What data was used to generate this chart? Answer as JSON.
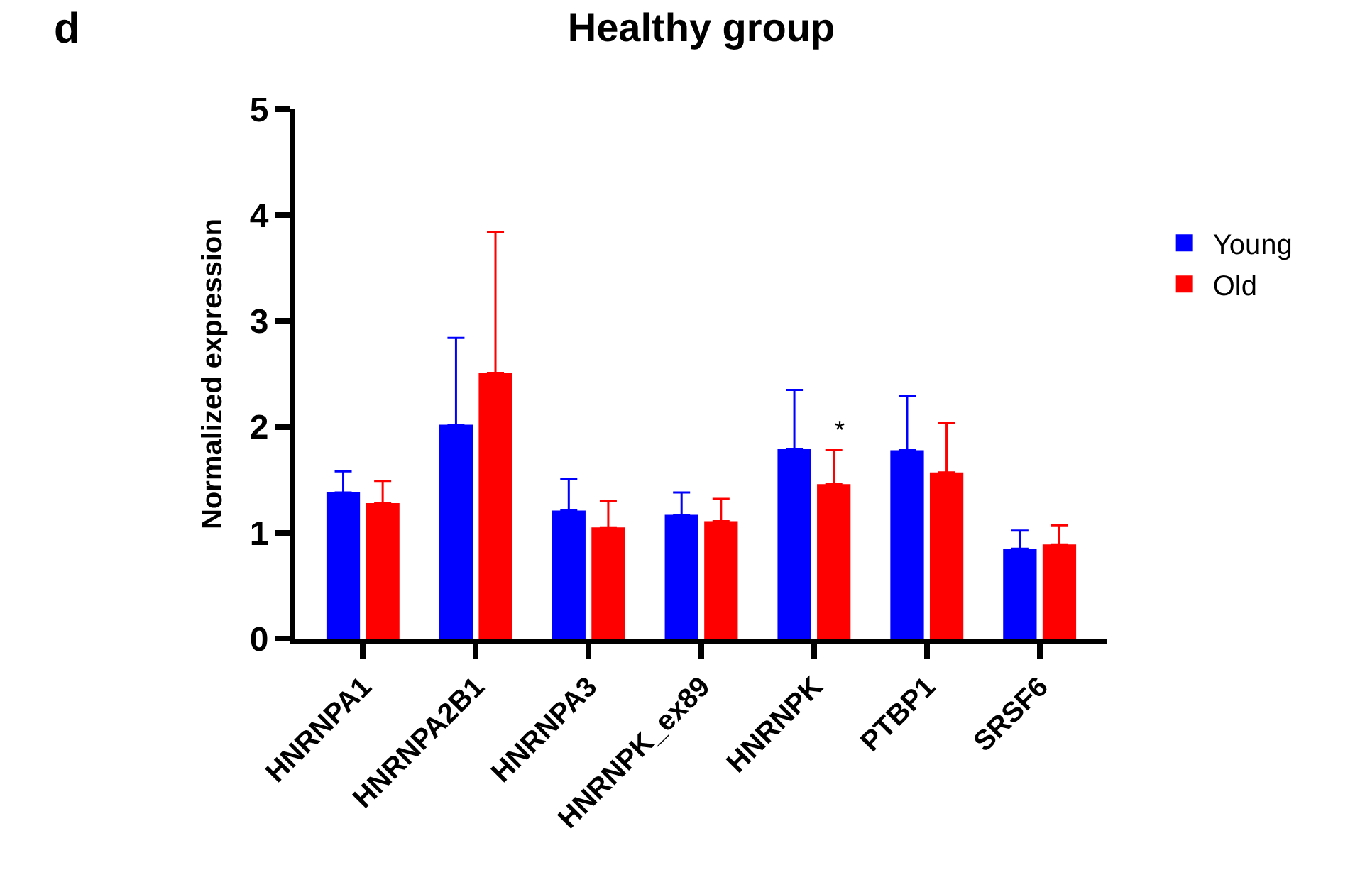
{
  "chart_data": {
    "type": "bar",
    "title": "Healthy group",
    "ylabel": "Normalized expression",
    "categories": [
      "HNRNPA1",
      "HNRNPA2B1",
      "HNRNPA3",
      "HNRNPK_ex89",
      "HNRNPK",
      "PTBP1",
      "SRSF6"
    ],
    "series": [
      {
        "name": "Young",
        "color": "#0000ff",
        "values": [
          1.38,
          2.02,
          1.21,
          1.17,
          1.79,
          1.78,
          0.85
        ],
        "errors": [
          [
            1.38,
            1.58
          ],
          [
            2.02,
            2.84
          ],
          [
            1.21,
            1.51
          ],
          [
            1.17,
            1.38
          ],
          [
            1.79,
            2.35
          ],
          [
            1.78,
            2.29
          ],
          [
            0.85,
            1.02
          ]
        ]
      },
      {
        "name": "Old",
        "color": "#ff0000",
        "values": [
          1.28,
          2.51,
          1.05,
          1.11,
          1.46,
          1.57,
          0.89
        ],
        "errors": [
          [
            1.28,
            1.49
          ],
          [
            2.51,
            3.84
          ],
          [
            1.05,
            1.3
          ],
          [
            1.11,
            1.32
          ],
          [
            1.46,
            1.78
          ],
          [
            1.57,
            2.04
          ],
          [
            0.89,
            1.07
          ]
        ]
      }
    ],
    "ylim": [
      0,
      5
    ],
    "yticks": [
      0,
      1,
      2,
      3,
      4,
      5
    ],
    "legend": "top right",
    "annotations": [
      "d",
      {
        "text": "*",
        "x": "HNRNPK",
        "y": 1.78
      }
    ]
  }
}
